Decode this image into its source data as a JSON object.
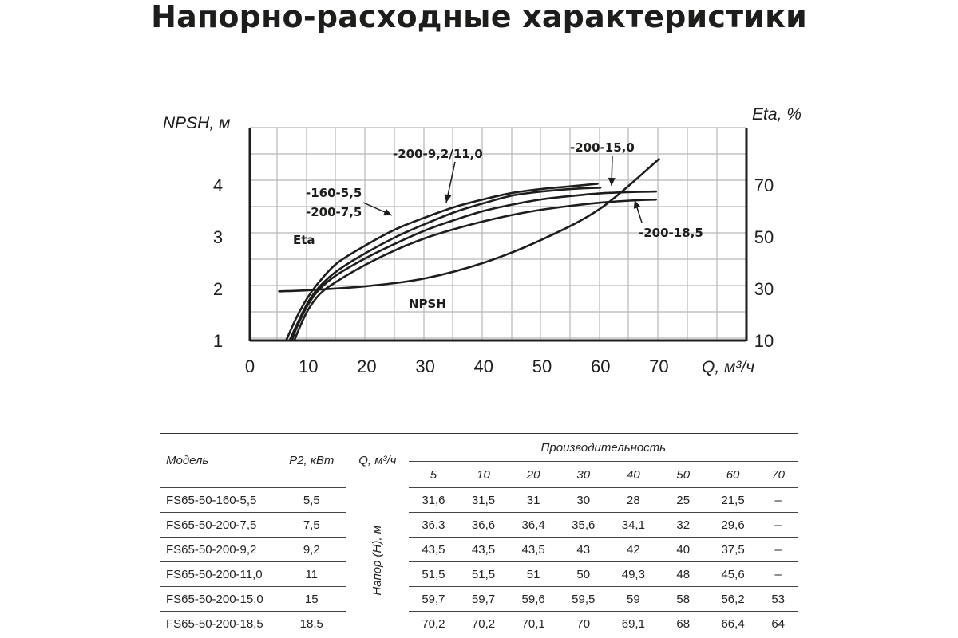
{
  "title": "Напорно-расходные характеристики",
  "chart_data": {
    "type": "line",
    "left_axis": {
      "label": "NPSH, м",
      "ticks": [
        "1",
        "2",
        "3",
        "4"
      ],
      "range": [
        1,
        4.5
      ]
    },
    "right_axis": {
      "label": "Eta, %",
      "ticks": [
        "10",
        "30",
        "50",
        "70"
      ],
      "range": [
        10,
        80
      ]
    },
    "x_axis": {
      "label": "Q, м³/ч",
      "ticks": [
        "0",
        "10",
        "20",
        "30",
        "40",
        "50",
        "60",
        "70"
      ],
      "range": [
        0,
        85
      ]
    },
    "grid": true,
    "annotations": [
      "-200-9,2/11,0",
      "-200-15,0",
      "-160-5,5",
      "-200-7,5",
      "-200-18,5",
      "Eta",
      "NPSH"
    ],
    "series": [
      {
        "name": "NPSH",
        "axis": "left",
        "x": [
          5,
          10,
          20,
          30,
          40,
          50,
          60,
          70
        ],
        "y": [
          1.95,
          1.97,
          2.05,
          2.2,
          2.5,
          2.95,
          3.55,
          4.5
        ]
      },
      {
        "name": "-160-5,5",
        "axis": "right",
        "x": [
          6.2,
          8,
          10,
          12,
          15,
          20,
          25,
          30,
          35,
          40,
          45,
          50,
          55,
          59.5
        ],
        "y": [
          10,
          19,
          27,
          33,
          40,
          47,
          53,
          57.5,
          61.5,
          64.5,
          67,
          68.5,
          69.5,
          70.5
        ]
      },
      {
        "name": "-200-7,5",
        "axis": "right",
        "x": [
          6.8,
          8,
          10,
          12,
          15,
          20,
          25,
          30,
          35,
          40,
          45,
          50,
          55,
          60
        ],
        "y": [
          10,
          16,
          25,
          31,
          37,
          44,
          50,
          55,
          59.5,
          63,
          66,
          67.5,
          68.5,
          69
        ]
      },
      {
        "name": "-200-9,2/11,0",
        "axis": "right",
        "x": [
          7.2,
          8,
          10,
          12,
          15,
          20,
          25,
          30,
          35,
          40,
          45,
          50,
          55,
          60,
          65,
          69.5
        ],
        "y": [
          10,
          15,
          24,
          30,
          35.5,
          42,
          47.5,
          52.5,
          56.5,
          60,
          62.5,
          64.5,
          65.8,
          66.8,
          67.3,
          67.5
        ]
      },
      {
        "name": "-200-15,0 / -200-18,5",
        "axis": "right",
        "x": [
          7.6,
          8.5,
          10,
          12,
          15,
          20,
          25,
          30,
          35,
          40,
          45,
          50,
          55,
          60,
          65,
          69.5
        ],
        "y": [
          10,
          15,
          22,
          28,
          33,
          39.5,
          45,
          49.5,
          53,
          56,
          58.5,
          60.5,
          62,
          63.2,
          64,
          64.4
        ]
      }
    ]
  },
  "table": {
    "headers": {
      "model": "Модель",
      "p2": "P2, кВт",
      "q": "Q, м³/ч",
      "perf": "Производительность",
      "head": "Напор (H), м"
    },
    "q_values": [
      "5",
      "10",
      "20",
      "30",
      "40",
      "50",
      "60",
      "70"
    ],
    "rows": [
      {
        "model": "FS65-50-160-5,5",
        "p2": "5,5",
        "values": [
          "31,6",
          "31,5",
          "31",
          "30",
          "28",
          "25",
          "21,5",
          "–"
        ]
      },
      {
        "model": "FS65-50-200-7,5",
        "p2": "7,5",
        "values": [
          "36,3",
          "36,6",
          "36,4",
          "35,6",
          "34,1",
          "32",
          "29,6",
          "–"
        ]
      },
      {
        "model": "FS65-50-200-9,2",
        "p2": "9,2",
        "values": [
          "43,5",
          "43,5",
          "43,5",
          "43",
          "42",
          "40",
          "37,5",
          "–"
        ]
      },
      {
        "model": "FS65-50-200-11,0",
        "p2": "11",
        "values": [
          "51,5",
          "51,5",
          "51",
          "50",
          "49,3",
          "48",
          "45,6",
          "–"
        ]
      },
      {
        "model": "FS65-50-200-15,0",
        "p2": "15",
        "values": [
          "59,7",
          "59,7",
          "59,6",
          "59,5",
          "59",
          "58",
          "56,2",
          "53"
        ]
      },
      {
        "model": "FS65-50-200-18,5",
        "p2": "18,5",
        "values": [
          "70,2",
          "70,2",
          "70,1",
          "70",
          "69,1",
          "68",
          "66,4",
          "64"
        ]
      }
    ]
  }
}
